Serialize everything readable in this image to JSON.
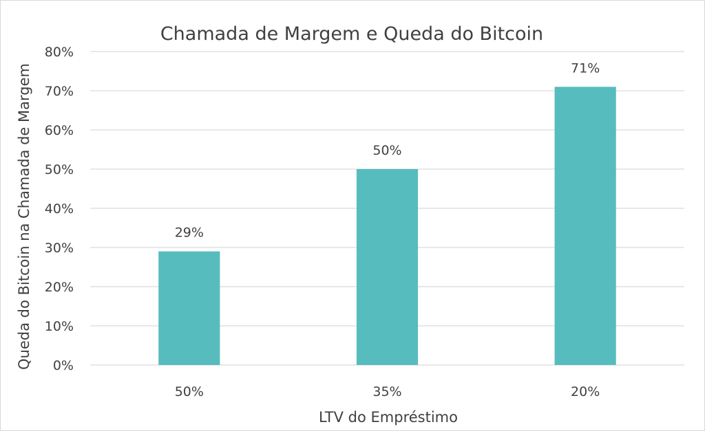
{
  "chart_data": {
    "type": "bar",
    "title": "Chamada de Margem e Queda do Bitcoin",
    "xlabel": "LTV do Empréstimo",
    "ylabel": "Queda do Bitcoin na Chamada de Margem",
    "categories": [
      "50%",
      "35%",
      "20%"
    ],
    "values": [
      29,
      50,
      71
    ],
    "data_labels": [
      "29%",
      "50%",
      "71%"
    ],
    "ylim": [
      0,
      80
    ],
    "yticks": [
      0,
      10,
      20,
      30,
      40,
      50,
      60,
      70,
      80
    ],
    "ytick_labels": [
      "0%",
      "10%",
      "20%",
      "30%",
      "40%",
      "50%",
      "60%",
      "70%",
      "80%"
    ],
    "grid": true,
    "legend": "none",
    "bar_color": "#57bcbd"
  }
}
